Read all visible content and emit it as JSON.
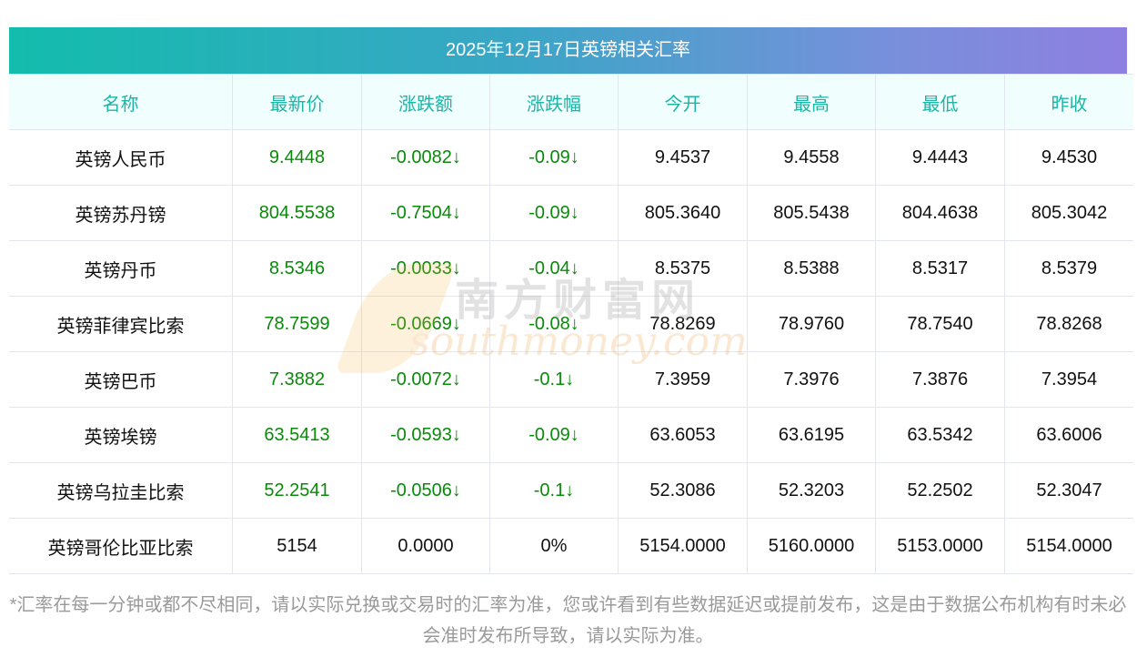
{
  "title": "2025年12月17日英镑相关汇率",
  "headers": [
    "名称",
    "最新价",
    "涨跌额",
    "涨跌幅",
    "今开",
    "最高",
    "最低",
    "昨收"
  ],
  "rows": [
    [
      "英镑人民币",
      "9.4448",
      "-0.0082↓",
      "-0.09↓",
      "9.4537",
      "9.4558",
      "9.4443",
      "9.4530"
    ],
    [
      "英镑苏丹镑",
      "804.5538",
      "-0.7504↓",
      "-0.09↓",
      "805.3640",
      "805.5438",
      "804.4638",
      "805.3042"
    ],
    [
      "英镑丹币",
      "8.5346",
      "-0.0033↓",
      "-0.04↓",
      "8.5375",
      "8.5388",
      "8.5317",
      "8.5379"
    ],
    [
      "英镑菲律宾比索",
      "78.7599",
      "-0.0669↓",
      "-0.08↓",
      "78.8269",
      "78.9760",
      "78.7540",
      "78.8268"
    ],
    [
      "英镑巴币",
      "7.3882",
      "-0.0072↓",
      "-0.1↓",
      "7.3959",
      "7.3976",
      "7.3876",
      "7.3954"
    ],
    [
      "英镑埃镑",
      "63.5413",
      "-0.0593↓",
      "-0.09↓",
      "63.6053",
      "63.6195",
      "63.5342",
      "63.6006"
    ],
    [
      "英镑乌拉圭比索",
      "52.2541",
      "-0.0506↓",
      "-0.1↓",
      "52.3086",
      "52.3203",
      "52.2502",
      "52.3047"
    ],
    [
      "英镑哥伦比亚比索",
      "5154",
      "0.0000",
      "0%",
      "5154.0000",
      "5160.0000",
      "5153.0000",
      "5154.0000"
    ]
  ],
  "green_rows": [
    true,
    true,
    true,
    true,
    true,
    true,
    true,
    false
  ],
  "note": "*汇率在每一分钟或都不尽相同，请以实际兑换或交易时的汇率为准，您或许看到有些数据延迟或提前发布，这是由于数据公布机构有时未必会准时发布所导致，请以实际为准。",
  "watermark": {
    "cn": "南方财富网",
    "en": "southmoney.com"
  },
  "colors": {
    "header_text": "#1eb4a6",
    "up_down_green": "#0a8a0a",
    "gradient_start": "#13bcac",
    "gradient_end": "#8e7fe0"
  }
}
